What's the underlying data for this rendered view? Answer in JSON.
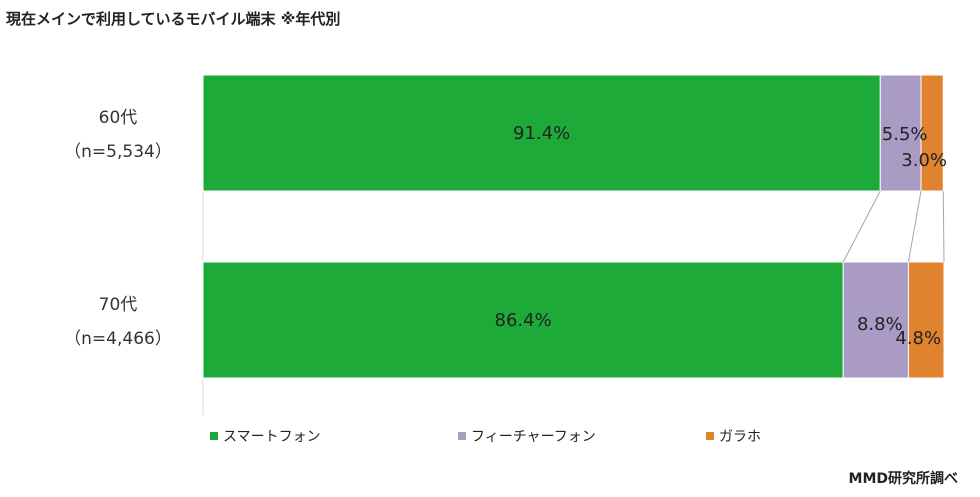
{
  "title": "現在メインで利用しているモバイル端末 ※年代別",
  "credit": "MMD研究所調べ",
  "chart_data": {
    "type": "bar",
    "orientation": "horizontal",
    "stacked": "100%",
    "categories": [
      {
        "label": "60代",
        "n_label": "（n=5,534）"
      },
      {
        "label": "70代",
        "n_label": "（n=4,466）"
      }
    ],
    "series": [
      {
        "name": "スマートフォン",
        "color": "#1EAA39",
        "values": [
          91.4,
          86.4
        ],
        "labels": [
          "91.4%",
          "86.4%"
        ]
      },
      {
        "name": "フィーチャーフォン",
        "color": "#A99BC4",
        "values": [
          5.5,
          8.8
        ],
        "labels": [
          "5.5%",
          "8.8%"
        ]
      },
      {
        "name": "ガラホ",
        "color": "#E0832E",
        "values": [
          3.0,
          4.8
        ],
        "labels": [
          "3.0%",
          "4.8%"
        ]
      }
    ],
    "xlim": [
      0,
      100
    ],
    "grid": false,
    "legend": "bottom",
    "series_lines": true
  }
}
